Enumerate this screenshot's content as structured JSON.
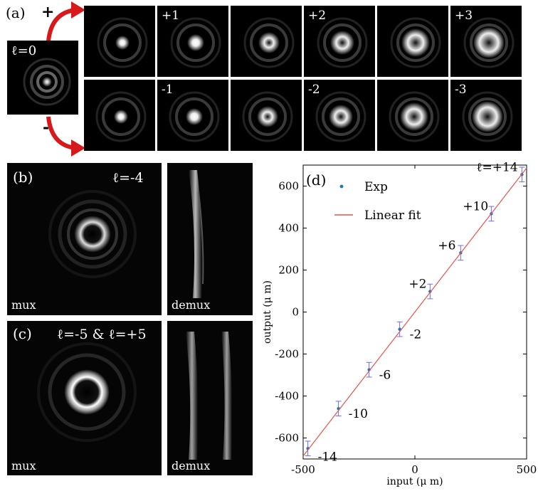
{
  "panel_a": {
    "label": "(a)",
    "plus_sign": "+",
    "minus_sign": "-",
    "center_label": "ℓ=0",
    "top_row_labels": [
      "",
      "+1",
      "",
      "+2",
      "",
      "+3"
    ],
    "bottom_row_labels": [
      "",
      "-1",
      "",
      "-2",
      "",
      "-3"
    ],
    "arrow_color": "#d7191c"
  },
  "panel_b": {
    "label": "(b)",
    "l_label": "ℓ=-4",
    "mux_label": "mux",
    "demux_label": "demux"
  },
  "panel_c": {
    "label": "(c)",
    "l_label": "ℓ=-5 & ℓ=+5",
    "mux_label": "mux",
    "demux_label": "demux"
  },
  "panel_d": {
    "label": "(d)",
    "chart_data": {
      "type": "scatter",
      "xlabel": "input (μ m)",
      "ylabel": "output (μ m)",
      "xlim": [
        -500,
        500
      ],
      "ylim": [
        -700,
        700
      ],
      "xticks": [
        -500,
        0,
        500
      ],
      "yticks": [
        -600,
        -400,
        -200,
        0,
        200,
        400,
        600
      ],
      "legend": {
        "placement": "top-left",
        "entries": [
          "Exp",
          "Linear fit"
        ]
      },
      "series": [
        {
          "name": "Exp",
          "kind": "points",
          "color": "#1f77b4",
          "error_color": "#6b6bff",
          "x": [
            -479,
            -342,
            -205,
            -68,
            68,
            205,
            342,
            479
          ],
          "y": [
            -650,
            -460,
            -275,
            -82,
            98,
            282,
            468,
            655
          ],
          "yerr": [
            35,
            35,
            35,
            35,
            35,
            35,
            35,
            35
          ]
        },
        {
          "name": "Linear fit",
          "kind": "line",
          "color": "#e8534a",
          "x": [
            -500,
            500
          ],
          "y": [
            -686,
            686
          ]
        }
      ],
      "annotations": [
        {
          "text": "-14",
          "x": -479,
          "y": -650
        },
        {
          "text": "-10",
          "x": -342,
          "y": -460
        },
        {
          "text": "-6",
          "x": -205,
          "y": -275
        },
        {
          "text": "-2",
          "x": -68,
          "y": -82
        },
        {
          "text": "+2",
          "x": 68,
          "y": 98
        },
        {
          "text": "+6",
          "x": 205,
          "y": 282
        },
        {
          "text": "+10",
          "x": 342,
          "y": 468
        },
        {
          "text": "ℓ=+14",
          "x": 479,
          "y": 655
        }
      ]
    }
  }
}
